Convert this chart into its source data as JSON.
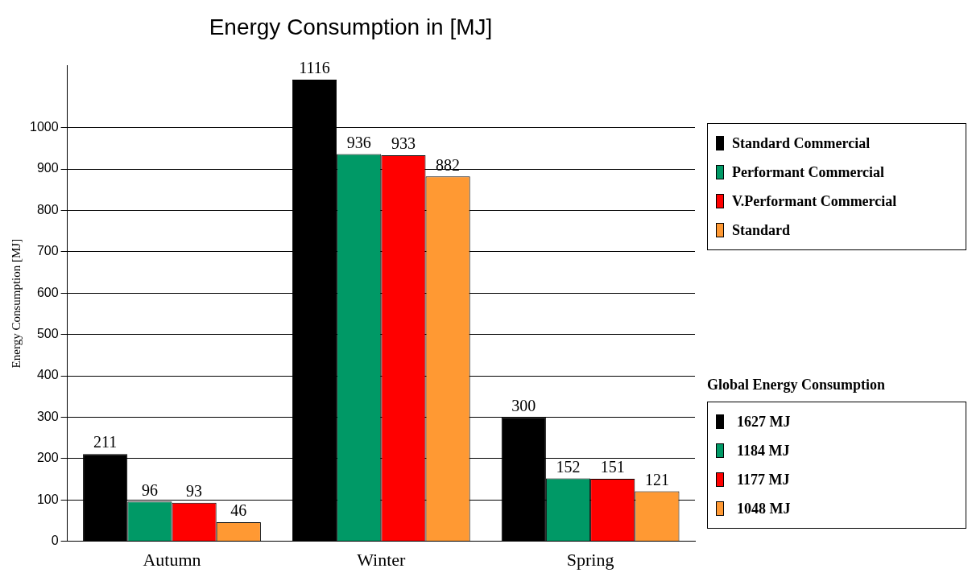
{
  "chart_data": {
    "type": "bar",
    "title": "Energy Consumption in [MJ]",
    "ylabel": "Energy Consumption [MJ]",
    "categories": [
      "Autumn",
      "Winter",
      "Spring"
    ],
    "series": [
      {
        "name": "Standard Commercial",
        "color": "#000000",
        "values": [
          211,
          1116,
          300
        ]
      },
      {
        "name": "Performant Commercial",
        "color": "#009966",
        "values": [
          96,
          936,
          152
        ]
      },
      {
        "name": "V.Performant Commercial",
        "color": "#ff0000",
        "values": [
          93,
          933,
          151
        ]
      },
      {
        "name": "Standard",
        "color": "#ff9933",
        "values": [
          46,
          882,
          121
        ]
      }
    ],
    "ylim": [
      0,
      1150
    ],
    "yticks": [
      0,
      100,
      200,
      300,
      400,
      500,
      600,
      700,
      800,
      900,
      1000
    ],
    "grid": "y",
    "legend": "right",
    "data_labels": true,
    "annotations": [
      "Global Energy Consumption",
      "1627 MJ",
      "1184 MJ",
      "1177 MJ",
      "1048 MJ"
    ]
  }
}
